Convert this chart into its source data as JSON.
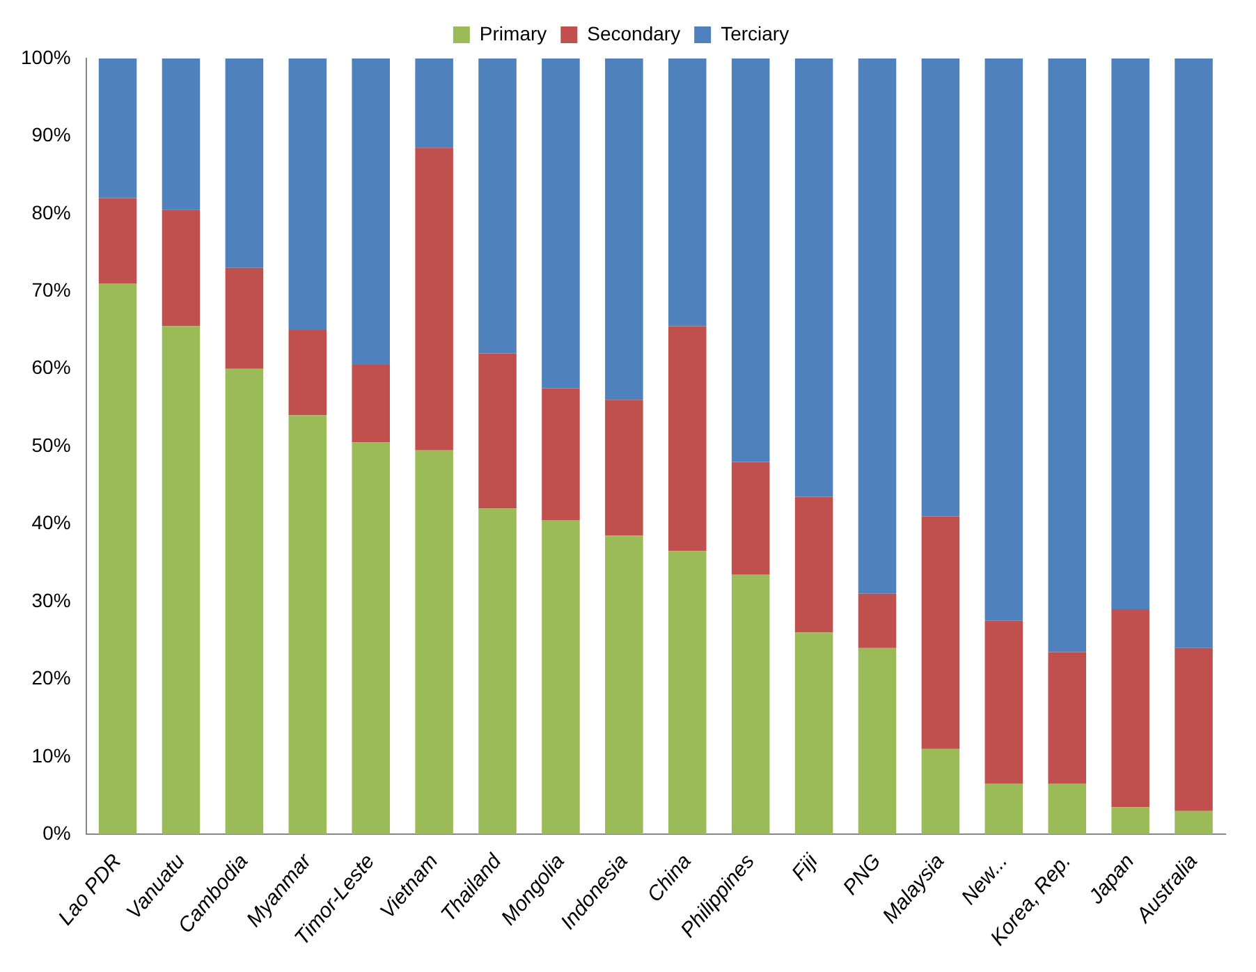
{
  "chart_data": {
    "type": "bar",
    "stacked": true,
    "legend": "top",
    "grid": false,
    "categories": [
      "Lao PDR",
      "Vanuatu",
      "Cambodia",
      "Myanmar",
      "Timor-Leste",
      "Vietnam",
      "Thailand",
      "Mongolia",
      "Indonesia",
      "China",
      "Philippines",
      "Fiji",
      "PNG",
      "Malaysia",
      "New...",
      "Korea, Rep.",
      "Japan",
      "Australia"
    ],
    "series": [
      {
        "name": "Primary",
        "color": "#9bbb59",
        "values": [
          71,
          65.5,
          60,
          54,
          50.5,
          49.5,
          42,
          40.5,
          38.5,
          36.5,
          33.5,
          26,
          24,
          11,
          6.5,
          6.5,
          3.5,
          3
        ]
      },
      {
        "name": "Secondary",
        "color": "#c0504d",
        "values": [
          11,
          15,
          13,
          11,
          10,
          39,
          20,
          17,
          17.5,
          29,
          14.5,
          17.5,
          7,
          30,
          21,
          17,
          25.5,
          21
        ]
      },
      {
        "name": "Terciary",
        "color": "#4f81bd",
        "values": [
          18,
          19.5,
          27,
          35,
          39.5,
          11.5,
          38,
          42.5,
          44,
          34.5,
          52,
          56.5,
          69,
          59,
          72.5,
          76.5,
          71,
          76
        ]
      }
    ],
    "ylim": [
      0,
      100
    ],
    "yticks": [
      {
        "value": 0,
        "label": "0%"
      },
      {
        "value": 10,
        "label": "10%"
      },
      {
        "value": 20,
        "label": "20%"
      },
      {
        "value": 30,
        "label": "30%"
      },
      {
        "value": 40,
        "label": "40%"
      },
      {
        "value": 50,
        "label": "50%"
      },
      {
        "value": 60,
        "label": "60%"
      },
      {
        "value": 70,
        "label": "70%"
      },
      {
        "value": 80,
        "label": "80%"
      },
      {
        "value": 90,
        "label": "90%"
      },
      {
        "value": 100,
        "label": "100%"
      }
    ]
  }
}
